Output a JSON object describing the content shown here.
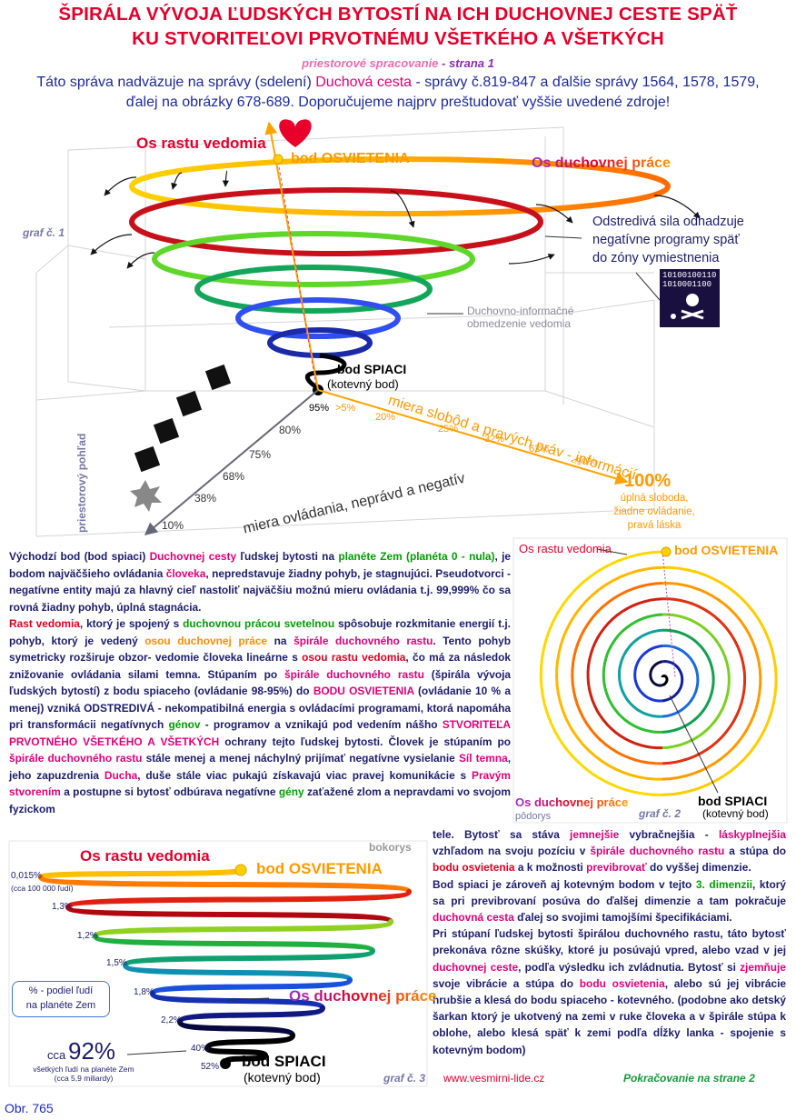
{
  "header": {
    "title_lines": [
      "ŠPIRÁLA VÝVOJA ĽUDSKÝCH BYTOSTÍ NA ICH DUCHOVNEJ CESTE SPÄŤ",
      "KU STVORITEĽOVI PRVOTNÉMU VŠETKÉHO A VŠETKÝCH"
    ],
    "subtitle": "priestorové spracovanie",
    "subtitle_page": "- strana 1",
    "intro": [
      [
        "Táto správa nadväzuje na správy (sdelení) ",
        {
          "text": "Duchová cesta",
          "color": "#e0007a"
        },
        " - správy č.819-847 a ďalšie správy 1564, 1578, 1579,"
      ],
      [
        "ďalej na obrázky 678-689. Doporučujeme najprv preštudovať vyššie uvedené zdroje!"
      ]
    ]
  },
  "graph1": {
    "axis_consciousness": "Os rastu vedomia",
    "enlightenment": "bod OSVIETENIA",
    "axis_work": "Os duchovnej práce",
    "label": "graf č. 1",
    "centrifugal_lines": [
      "Odstredivá sila odhadzuje",
      "negatívne programy späť",
      "do zóny vymiestnenia"
    ],
    "binary_lines": [
      "10100100110",
      "1010001100"
    ],
    "limit_lines": [
      "Duchovno-informačné",
      "obmedzenie vedomia"
    ],
    "sleeping": "bod SPIACI",
    "anchor": "(kotevný bod)",
    "start_control": "95%",
    "freedom_ticks": [
      ">5%",
      "20%",
      "25%",
      "32%",
      "62%",
      "<90%"
    ],
    "freedom_axis": "miera slobôd a pravých práv - informácií",
    "full": "100%",
    "full_lines": [
      "úplná sloboda,",
      "žiadne ovládanie,",
      "pravá láska"
    ],
    "control_ticks": [
      "80%",
      "75%",
      "68%",
      "38%",
      "10%"
    ],
    "control_axis": "miera ovládania, neprávd a negatív",
    "view": "priestorový pohľad"
  },
  "body": {
    "left": [
      [
        "Východzí bod (bod spiaci) ",
        {
          "text": "Duchovnej cesty",
          "color": "#e0007a"
        },
        " ľudskej bytosti na ",
        {
          "text": "planéte Zem (planéta 0 - nula)",
          "color": "#00a000"
        },
        ", je bodom najväčšieho ovládania ",
        {
          "text": "človeka",
          "color": "#e0007a"
        },
        ", nepredstavuje žiadny pohyb, je stagnujúci. Pseudotvorci - negatívne entity majú za hlavný cieľ nastoliť najväčšiu možnú mieru ovládania t.j. 99,999% čo sa rovná žiadny pohyb, úplná stagnácia."
      ],
      [
        {
          "text": "Rast vedomia",
          "color": "#e00020"
        },
        ", ktorý je spojený s ",
        {
          "text": "duchovnou prácou svetelnou",
          "color": "#00a000"
        },
        " spôsobuje rozkmitanie energií t.j. pohyb, ktorý je vedený ",
        {
          "text": "osou duchovnej práce",
          "color": "#ff8c00"
        },
        " na ",
        {
          "text": "špirále duchovného rastu",
          "color": "#e0007a"
        },
        ". Tento pohyb symetricky rozširuje obzor- vedomie človeka lineárne s ",
        {
          "text": "osou rastu vedomia",
          "color": "#e00020"
        },
        ", čo má za následok znižovanie ovládania silami temna. Stúpaním po ",
        {
          "text": "špirále duchovného rastu",
          "color": "#e0007a"
        },
        " (špirála vývoja ľudských bytostí) z bodu spiaceho (ovládanie 98-95%) do ",
        {
          "text": "BODU OSVIETENIA",
          "color": "#e0007a"
        },
        " (ovládanie 10 % a menej) vzniká ODSTREDIVÁ - nekompatibilná energia s ovládacími programami, ktorá napomáha pri transformácii negatívnych ",
        {
          "text": "génov",
          "color": "#00a000"
        },
        " - programov a vznikajú pod vedením nášho ",
        {
          "text": "STVORITEĽA PRVOTNÉHO VŠETKÉHO A VŠETKÝCH",
          "color": "#e0007a"
        },
        " ochrany tejto ľudskej bytosti. Človek je stúpaním po ",
        {
          "text": "špirále duchovného rastu",
          "color": "#e0007a"
        },
        " stále menej a menej náchylný prijímať negatívne vysielanie ",
        {
          "text": "Síl temna",
          "color": "#e0007a"
        },
        ", jeho zapuzdrenia ",
        {
          "text": "Ducha",
          "color": "#e0007a"
        },
        ", duše stále viac pukajú získavajú viac pravej komunikácie s ",
        {
          "text": "Pravým stvorením",
          "color": "#e0007a"
        },
        " a postupne si bytosť odbúrava negatívne ",
        {
          "text": "gény",
          "color": "#00a000"
        },
        " zaťažené zlom a nepravdami vo svojom fyzickom"
      ]
    ],
    "right": [
      [
        "tele.  Bytosť sa stáva ",
        {
          "text": "jemnejšie",
          "color": "#e0007a"
        },
        " vybračnejšia - ",
        {
          "text": "láskyplnejšia",
          "color": "#e0007a"
        },
        " vzhľadom na svoju pozíciu v ",
        {
          "text": "špirále duchovného rastu",
          "color": "#e0007a"
        },
        " a stúpa do ",
        {
          "text": "bodu osvietenia",
          "color": "#e00020"
        },
        " a k možnosti ",
        {
          "text": "previbrovať",
          "color": "#e0007a"
        },
        " do vyššej dimenzie."
      ],
      [
        "Bod spiaci je zároveň aj kotevným bodom v tejto ",
        {
          "text": "3. dimenzii",
          "color": "#00a000"
        },
        ", ktorý sa pri previbrovaní posúva do ďalšej dimenzie a tam pokračuje ",
        {
          "text": "duchovná cesta",
          "color": "#e0007a"
        },
        " ďalej so svojimi tamojšími špecifikáciami."
      ],
      [
        "Pri stúpaní ľudskej bytosti špirálou duchovného rastu, táto bytosť prekonáva rôzne skúšky, ktoré ju posúvajú vpred, alebo vzad v jej ",
        {
          "text": "duchovnej ceste",
          "color": "#e0007a"
        },
        ", podľa výsledku ich zvládnutia. Bytosť si ",
        {
          "text": "zjemňuje",
          "color": "#e0007a"
        },
        " svoje vibrácie a stúpa do ",
        {
          "text": "bodu osvietenia",
          "color": "#e0007a"
        },
        ", alebo sú jej vibrácie hrubšie a klesá do bodu spiaceho - kotevného. (podobne ako detský šarkan  ktorý je ukotvený na zemi v ruke človeka a v špirále stúpa k oblohe, alebo klesá späť k zemi podľa dĺžky lanka - spojenie s kotevným bodom)"
      ]
    ]
  },
  "graph2": {
    "axis_consciousness": "Os rastu vedomia",
    "enlightenment": "bod OSVIETENIA",
    "axis_work": "Os duchovnej práce",
    "view": "pôdorys",
    "label": "graf č. 2",
    "sleeping": "bod SPIACI",
    "anchor": "(kotevný bod)"
  },
  "graph3": {
    "view": "bokorys",
    "axis_consciousness": "Os rastu vedomia",
    "enlightenment": "bod OSVIETENIA",
    "shares": [
      "0,015%",
      "1,3%",
      "1,2%",
      "1,5%",
      "1,8%",
      "2,2%",
      "40%",
      "52%"
    ],
    "top_note": "(cca 100 000 ľudí)",
    "legend_lines": [
      "% - podiel ľudí",
      "na planéte Zem"
    ],
    "axis_work": "Os duchovnej práce",
    "approx": "cca",
    "total": "92%",
    "total_lines": [
      "všetkých ľudí na planéte Zem",
      "(cca 5,9 miliardy)"
    ],
    "sleeping": "bod SPIACI",
    "anchor": "(kotevný bod)",
    "label": "graf č. 3"
  },
  "footer": {
    "url": "www.vesmirni-lide.cz",
    "continued": "Pokračovanie na strane 2",
    "figure": "Obr. 765"
  }
}
